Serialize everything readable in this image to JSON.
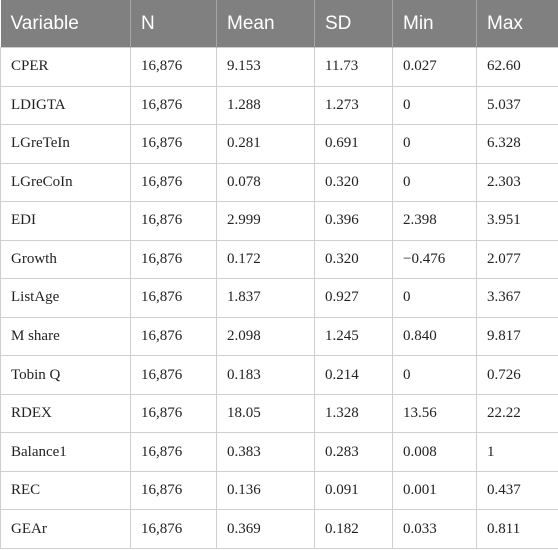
{
  "table": {
    "header": [
      "Variable",
      "N",
      "Mean",
      "SD",
      "Min",
      "Max"
    ],
    "rows": [
      [
        "CPER",
        "16,876",
        "9.153",
        "11.73",
        "0.027",
        "62.60"
      ],
      [
        "LDIGTA",
        "16,876",
        "1.288",
        "1.273",
        "0",
        "5.037"
      ],
      [
        "LGreTeIn",
        "16,876",
        "0.281",
        "0.691",
        "0",
        "6.328"
      ],
      [
        "LGreCoIn",
        "16,876",
        "0.078",
        "0.320",
        "0",
        "2.303"
      ],
      [
        "EDI",
        "16,876",
        "2.999",
        "0.396",
        "2.398",
        "3.951"
      ],
      [
        "Growth",
        "16,876",
        "0.172",
        "0.320",
        "−0.476",
        "2.077"
      ],
      [
        "ListAge",
        "16,876",
        "1.837",
        "0.927",
        "0",
        "3.367"
      ],
      [
        "M share",
        "16,876",
        "2.098",
        "1.245",
        "0.840",
        "9.817"
      ],
      [
        "Tobin Q",
        "16,876",
        "0.183",
        "0.214",
        "0",
        "0.726"
      ],
      [
        "RDEX",
        "16,876",
        "18.05",
        "1.328",
        "13.56",
        "22.22"
      ],
      [
        "Balance1",
        "16,876",
        "0.383",
        "0.283",
        "0.008",
        "1"
      ],
      [
        "REC",
        "16,876",
        "0.136",
        "0.091",
        "0.001",
        "0.437"
      ],
      [
        "GEAr",
        "16,876",
        "0.369",
        "0.182",
        "0.033",
        "0.811"
      ]
    ]
  }
}
